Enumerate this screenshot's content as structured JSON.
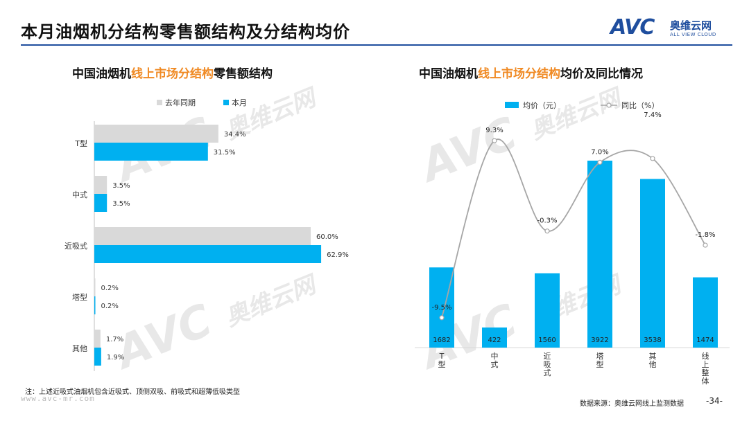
{
  "page": {
    "title": "本月油烟机分结构零售额结构及分结构均价",
    "logo": {
      "mark": "AVC",
      "cn": "奥维云网",
      "en": "ALL VIEW CLOUD"
    },
    "note": "注：上述近吸式油烟机包含近吸式、顶侧双吸、前吸式和超薄低吸类型",
    "url": "www.avc-mr.com",
    "source": "数据来源：奥维云网线上监测数据",
    "page_number": "-34-",
    "watermark": {
      "mark": "AVC",
      "cn": "奥维云网",
      "en": "ALL VIEW CLOUD"
    }
  },
  "left_title": {
    "a": "中国油烟机",
    "b": "线上市场分结构",
    "c": "零售额结构"
  },
  "right_title": {
    "a": "中国油烟机",
    "b": "线上市场分结构",
    "c": "均价及同比情况"
  },
  "chart_data": [
    {
      "type": "bar",
      "orientation": "horizontal",
      "categories": [
        "T型",
        "中式",
        "近吸式",
        "塔型",
        "其他"
      ],
      "series": [
        {
          "name": "去年同期",
          "color": "#d9d9d9",
          "values": [
            34.4,
            3.5,
            60.0,
            0.2,
            1.7
          ],
          "labels": [
            "34.4%",
            "3.5%",
            "60.0%",
            "0.2%",
            "1.7%"
          ]
        },
        {
          "name": "本月",
          "color": "#00b0f0",
          "values": [
            31.5,
            3.5,
            62.9,
            0.2,
            1.9
          ],
          "labels": [
            "31.5%",
            "3.5%",
            "62.9%",
            "0.2%",
            "1.9%"
          ]
        }
      ],
      "xlim": [
        0,
        70
      ],
      "legend": "top",
      "grid": false
    },
    {
      "type": "bar+line",
      "categories": [
        "T型",
        "中式",
        "近吸式",
        "塔型",
        "其他",
        "线上整体"
      ],
      "series": [
        {
          "name": "均价（元）",
          "kind": "bar",
          "color": "#00b0f0",
          "values": [
            1682,
            422,
            1560,
            3922,
            3538,
            1474
          ],
          "labels": [
            "1682",
            "422",
            "1560",
            "3922",
            "3538",
            "1474"
          ]
        },
        {
          "name": "同比（%）",
          "kind": "line",
          "color": "#a6a6a6",
          "values": [
            -9.5,
            9.3,
            -0.3,
            7.0,
            7.4,
            -1.8
          ],
          "labels": [
            "-9.5%",
            "9.3%",
            "-0.3%",
            "7.0%",
            "7.4%",
            "-1.8%"
          ]
        }
      ],
      "ylim_bar": [
        0,
        4200
      ],
      "ylim_line": [
        -14,
        11
      ],
      "legend": "top",
      "grid": false
    }
  ]
}
